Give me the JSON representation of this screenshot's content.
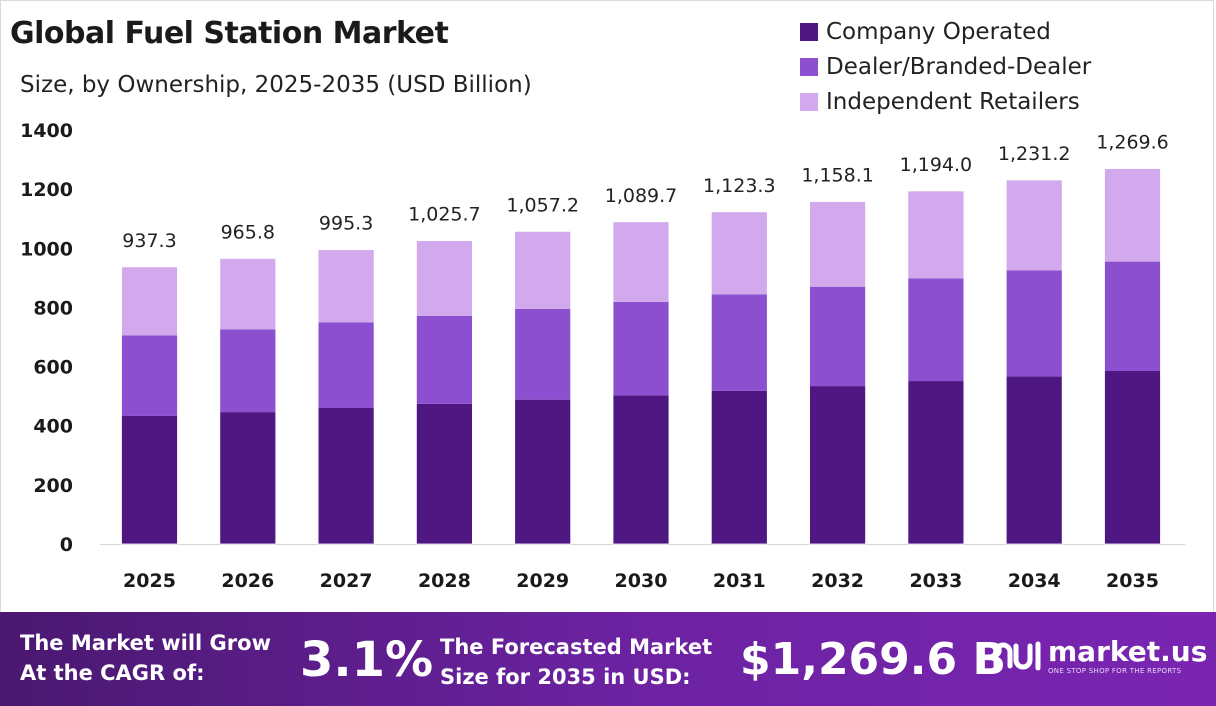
{
  "title": "Global Fuel Station Market",
  "subtitle": "Size, by Ownership, 2025-2035 (USD Billion)",
  "colors": {
    "company_operated": "#4e1782",
    "dealer_branded": "#8b4fcf",
    "independent": "#d2a9ec",
    "footer_bg": "#5e1d8f"
  },
  "chart_data": {
    "type": "bar",
    "stacked": true,
    "categories": [
      "2025",
      "2026",
      "2027",
      "2028",
      "2029",
      "2030",
      "2031",
      "2032",
      "2033",
      "2034",
      "2035"
    ],
    "series": [
      {
        "name": "Company Operated",
        "values": [
          433,
          446,
          460,
          474,
          488,
          503,
          518,
          534,
          551,
          567,
          585
        ]
      },
      {
        "name": "Dealer/Branded-Dealer",
        "values": [
          272,
          280,
          289,
          297,
          307,
          316,
          326,
          336,
          347,
          358,
          370
        ]
      },
      {
        "name": "Independent Retailers",
        "values": [
          232.3,
          239.8,
          246.3,
          254.7,
          262.2,
          270.7,
          279.3,
          288.1,
          296.0,
          306.2,
          314.6
        ]
      }
    ],
    "totals": [
      "937.3",
      "965.8",
      "995.3",
      "1,025.7",
      "1,057.2",
      "1,089.7",
      "1,123.3",
      "1,158.1",
      "1,194.0",
      "1,231.2",
      "1,269.6"
    ],
    "yticks": [
      "0",
      "200",
      "400",
      "600",
      "800",
      "1000",
      "1200",
      "1400"
    ],
    "ylim": [
      0,
      1400
    ],
    "legend_position": "top-right",
    "grid": false
  },
  "footer": {
    "cagr_label_line1": "The Market will Grow",
    "cagr_label_line2": "At the CAGR of:",
    "cagr_value": "3.1%",
    "forecast_label_line1": "The Forecasted Market",
    "forecast_label_line2": "Size for 2035 in USD:",
    "forecast_value": "$1,269.6 B",
    "brand_name": "market.us",
    "brand_tagline": "ONE STOP SHOP FOR THE REPORTS",
    "brand_icon": "market-us-logo-icon"
  }
}
